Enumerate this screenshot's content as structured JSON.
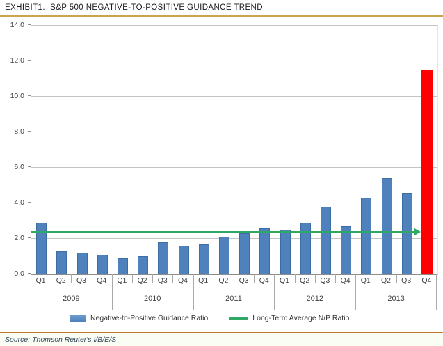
{
  "title": "EXHIBIT1.  S&P 500 NEGATIVE-TO-POSITIVE GUIDANCE TREND",
  "source_line": "Source: Thomson Reuter's I/B/E/S",
  "colors": {
    "bar": "#4F81BD",
    "bar_border": "#3E6DA3",
    "highlight_bar": "#FE0000",
    "average_line": "#2FA866",
    "top_rule": "#C9A54F",
    "bottom_rule": "#C07A2A",
    "gridline": "#C3C3C3",
    "axis": "#8C8C8C"
  },
  "legend": [
    {
      "swatch": "bar",
      "label": "Negative-to-Positive Guidance Ratio"
    },
    {
      "swatch": "line",
      "label": "Long-Term Average N/P Ratio"
    }
  ],
  "chart_data": {
    "type": "bar",
    "title": "S&P 500 Negative-to-Positive Guidance Trend",
    "years": [
      "2009",
      "2010",
      "2011",
      "2012",
      "2013"
    ],
    "quarters_per_year": [
      "Q1",
      "Q2",
      "Q3",
      "Q4"
    ],
    "categories": [
      "2009 Q1",
      "2009 Q2",
      "2009 Q3",
      "2009 Q4",
      "2010 Q1",
      "2010 Q2",
      "2010 Q3",
      "2010 Q4",
      "2011 Q1",
      "2011 Q2",
      "2011 Q3",
      "2011 Q4",
      "2012 Q1",
      "2012 Q2",
      "2012 Q3",
      "2012 Q4",
      "2013 Q1",
      "2013 Q2",
      "2013 Q3",
      "2013 Q4"
    ],
    "values": [
      2.9,
      1.3,
      1.2,
      1.1,
      0.9,
      1.0,
      1.8,
      1.6,
      1.7,
      2.1,
      2.3,
      2.6,
      2.5,
      2.9,
      3.8,
      2.7,
      4.3,
      5.4,
      4.6,
      11.5
    ],
    "highlight_index": 19,
    "series_name": "Negative-to-Positive Guidance Ratio",
    "average_line": {
      "label": "Long-Term Average N/P Ratio",
      "value": 2.4
    },
    "ylim": [
      0,
      14
    ],
    "ytick_step": 2,
    "yticks": [
      "0.0",
      "2.0",
      "4.0",
      "6.0",
      "8.0",
      "10.0",
      "12.0",
      "14.0"
    ],
    "grid": "horizontal",
    "legend_position": "bottom"
  }
}
